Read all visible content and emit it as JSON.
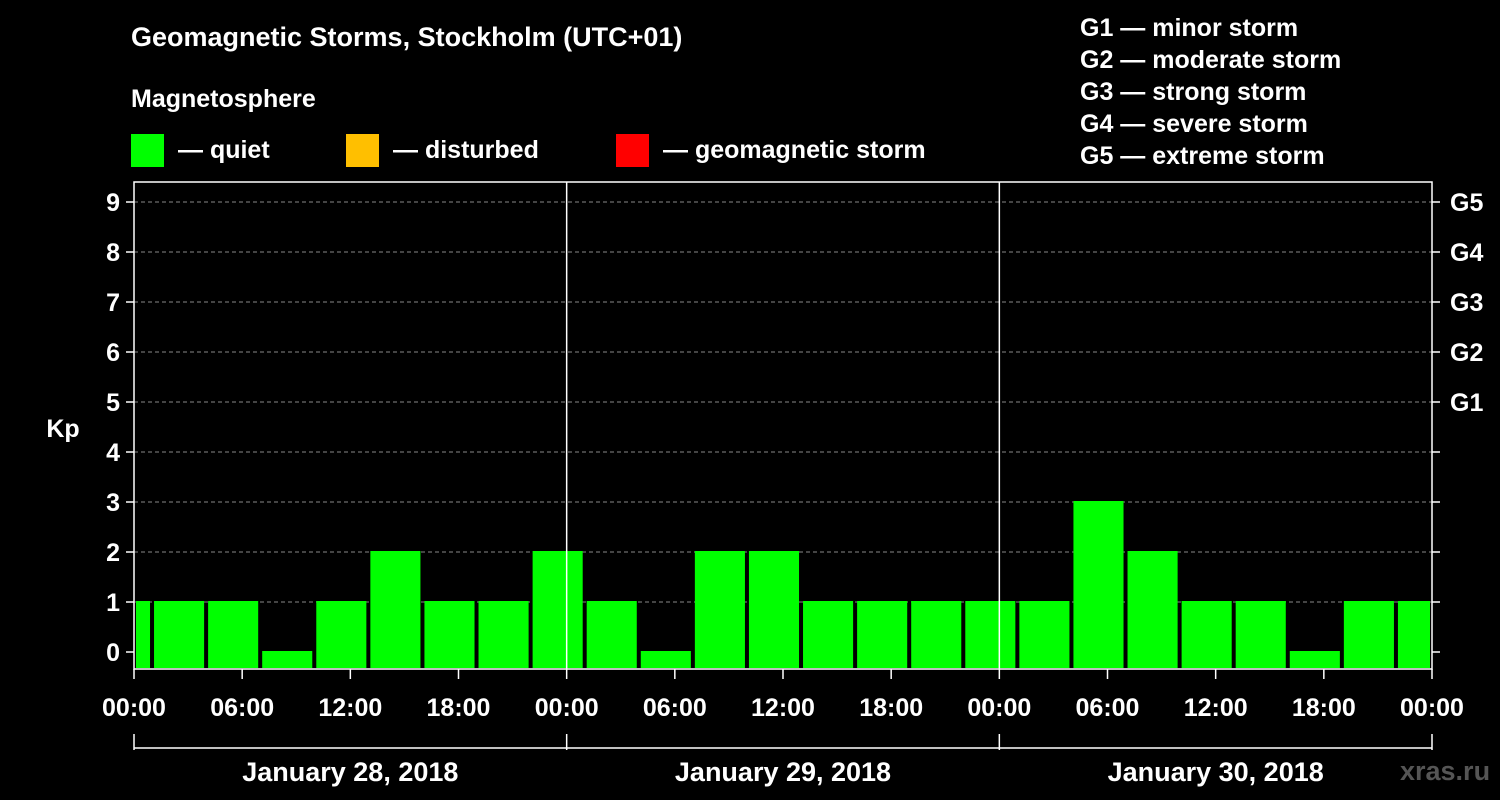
{
  "chart_data": {
    "type": "bar",
    "title": "Geomagnetic Storms, Stockholm (UTC+01)",
    "ylabel": "Kp",
    "ylim": [
      0,
      9
    ],
    "yticks": [
      0,
      1,
      2,
      3,
      4,
      5,
      6,
      7,
      8,
      9
    ],
    "storm_levels": [
      {
        "label": "G1",
        "kp": 5
      },
      {
        "label": "G2",
        "kp": 6
      },
      {
        "label": "G3",
        "kp": 7
      },
      {
        "label": "G4",
        "kp": 8
      },
      {
        "label": "G5",
        "kp": 9
      }
    ],
    "xrange_hours": [
      0,
      72
    ],
    "xticks": [
      {
        "hour": 0,
        "label": "00:00"
      },
      {
        "hour": 6,
        "label": "06:00"
      },
      {
        "hour": 12,
        "label": "12:00"
      },
      {
        "hour": 18,
        "label": "18:00"
      },
      {
        "hour": 24,
        "label": "00:00"
      },
      {
        "hour": 30,
        "label": "06:00"
      },
      {
        "hour": 36,
        "label": "12:00"
      },
      {
        "hour": 42,
        "label": "18:00"
      },
      {
        "hour": 48,
        "label": "00:00"
      },
      {
        "hour": 54,
        "label": "06:00"
      },
      {
        "hour": 60,
        "label": "12:00"
      },
      {
        "hour": 66,
        "label": "18:00"
      },
      {
        "hour": 72,
        "label": "00:00"
      }
    ],
    "days": [
      {
        "label": "January 28, 2018",
        "start_hour": 0,
        "end_hour": 24
      },
      {
        "label": "January 29, 2018",
        "start_hour": 24,
        "end_hour": 48
      },
      {
        "label": "January 30, 2018",
        "start_hour": 48,
        "end_hour": 72
      }
    ],
    "bars": [
      {
        "start": 0,
        "end": 1,
        "kp": 1
      },
      {
        "start": 1,
        "end": 4,
        "kp": 1
      },
      {
        "start": 4,
        "end": 7,
        "kp": 1
      },
      {
        "start": 7,
        "end": 10,
        "kp": 0
      },
      {
        "start": 10,
        "end": 13,
        "kp": 1
      },
      {
        "start": 13,
        "end": 16,
        "kp": 2
      },
      {
        "start": 16,
        "end": 19,
        "kp": 1
      },
      {
        "start": 19,
        "end": 22,
        "kp": 1
      },
      {
        "start": 22,
        "end": 25,
        "kp": 2
      },
      {
        "start": 25,
        "end": 28,
        "kp": 1
      },
      {
        "start": 28,
        "end": 31,
        "kp": 0
      },
      {
        "start": 31,
        "end": 34,
        "kp": 2
      },
      {
        "start": 34,
        "end": 37,
        "kp": 2
      },
      {
        "start": 37,
        "end": 40,
        "kp": 1
      },
      {
        "start": 40,
        "end": 43,
        "kp": 1
      },
      {
        "start": 43,
        "end": 46,
        "kp": 1
      },
      {
        "start": 46,
        "end": 49,
        "kp": 1
      },
      {
        "start": 49,
        "end": 52,
        "kp": 1
      },
      {
        "start": 52,
        "end": 55,
        "kp": 3
      },
      {
        "start": 55,
        "end": 58,
        "kp": 2
      },
      {
        "start": 58,
        "end": 61,
        "kp": 1
      },
      {
        "start": 61,
        "end": 64,
        "kp": 1
      },
      {
        "start": 64,
        "end": 67,
        "kp": 0
      },
      {
        "start": 67,
        "end": 70,
        "kp": 1
      },
      {
        "start": 70,
        "end": 72,
        "kp": 1
      }
    ],
    "grid": "dashed horizontal",
    "legend_position": "top"
  },
  "magnetosphere": {
    "title": "Magnetosphere",
    "legend": [
      {
        "label": "— quiet",
        "color": "#00ff00"
      },
      {
        "label": "— disturbed",
        "color": "#ffbf00"
      },
      {
        "label": "— geomagnetic storm",
        "color": "#ff0000"
      }
    ]
  },
  "storm_scale": [
    "G1 — minor storm",
    "G2 — moderate storm",
    "G3 — strong storm",
    "G4 — severe storm",
    "G5 — extreme storm"
  ],
  "watermark": "xras.ru"
}
